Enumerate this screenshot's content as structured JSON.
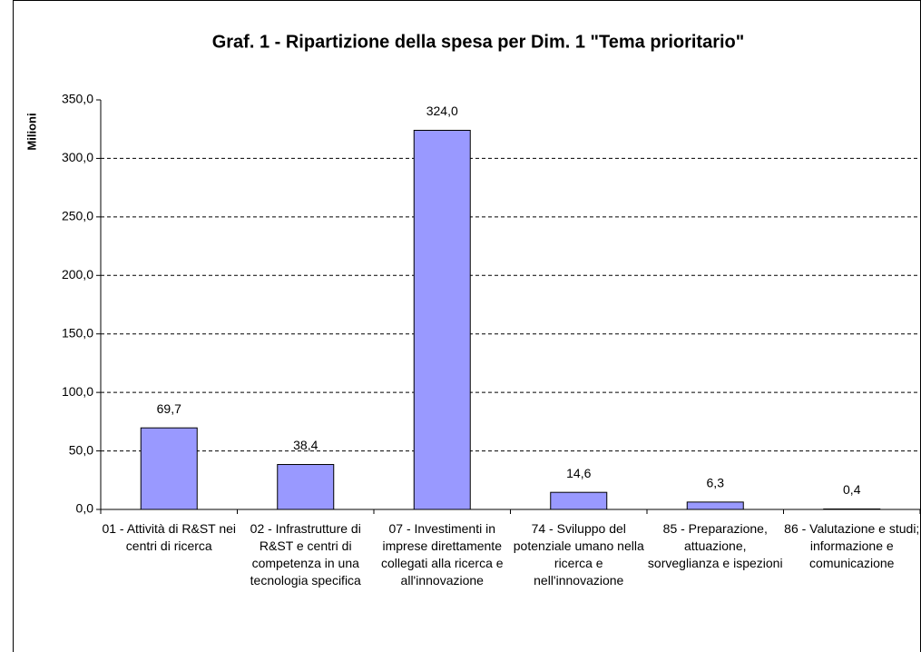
{
  "chart_data": {
    "type": "bar",
    "title": "Graf. 1 - Ripartizione della spesa per Dim. 1 \"Tema prioritario\"",
    "y_label": "Milioni",
    "categories": [
      "01 - Attività di R&ST nei centri di ricerca",
      "02 - Infrastrutture di R&ST e centri di competenza in una tecnologia specifica",
      "07 - Investimenti in imprese direttamente collegati alla ricerca e all'innovazione",
      "74 - Sviluppo del potenziale umano nella ricerca e nell'innovazione",
      "85 - Preparazione, attuazione, sorveglianza e ispezioni",
      "86 - Valutazione e studi; informazione e comunicazione"
    ],
    "values": [
      69.7,
      38.4,
      324.0,
      14.6,
      6.3,
      0.4
    ],
    "value_labels": [
      "69,7",
      "38,4",
      "324,0",
      "14,6",
      "6,3",
      "0,4"
    ],
    "color": "#9999ff",
    "ylim": [
      0,
      350
    ],
    "yticks": [
      {
        "value": 0,
        "label": "0,0"
      },
      {
        "value": 50,
        "label": "50,0"
      },
      {
        "value": 100,
        "label": "100,0"
      },
      {
        "value": 150,
        "label": "150,0"
      },
      {
        "value": 200,
        "label": "200,0"
      },
      {
        "value": 250,
        "label": "250,0"
      },
      {
        "value": 300,
        "label": "300,0"
      },
      {
        "value": 350,
        "label": "350,0"
      }
    ],
    "grid": true
  }
}
